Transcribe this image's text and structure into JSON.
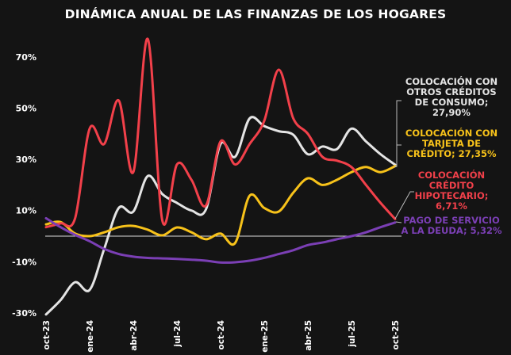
{
  "chart_data": {
    "type": "line",
    "title": "DINÁMICA ANUAL DE LAS FINANZAS DE LOS HOGARES",
    "xlabel": "",
    "ylabel": "",
    "x": [
      "oct-23",
      "nov-23",
      "dic-23",
      "ene-24",
      "feb-24",
      "mar-24",
      "abr-24",
      "may-24",
      "jun-24",
      "jul-24",
      "ago-24",
      "sep-24",
      "oct-24",
      "nov-24",
      "dic-24",
      "ene-25",
      "feb-25",
      "mar-25",
      "abr-25",
      "may-25",
      "jun-25",
      "jul-25",
      "ago-25",
      "sep-25",
      "oct-25"
    ],
    "x_tick_labels": [
      "oct-23",
      "ene-24",
      "abr-24",
      "jul-24",
      "oct-24",
      "ene-25",
      "abr-25",
      "jul-25",
      "oct-25"
    ],
    "y_tick_labels": [
      "70%",
      "50%",
      "30%",
      "10%",
      "-10%",
      "-30%"
    ],
    "y_ticks": [
      70,
      50,
      30,
      10,
      -10,
      -30
    ],
    "ylim": [
      -30,
      78
    ],
    "grid": false,
    "zero_line": true,
    "legend": "direct labels at right end",
    "series": [
      {
        "name": "COLOCACIÓN CON OTROS CRÉDITOS DE CONSUMO; 27,90%",
        "color": "#e4e4e4",
        "values": [
          -30.6,
          -25,
          -18,
          -21,
          -5,
          11,
          9.6,
          23.5,
          16.4,
          13,
          10,
          10.5,
          36,
          31,
          46,
          43,
          41,
          39.6,
          32,
          35,
          34,
          42,
          37,
          32,
          27.9
        ]
      },
      {
        "name": "COLOCACIÓN CON TARJETA DE CRÉDITO; 27,35%",
        "color": "#f7c21a",
        "values": [
          4.6,
          5.5,
          1,
          0,
          1.5,
          3.5,
          4,
          2.5,
          0.3,
          3.4,
          1.5,
          -1.2,
          1,
          -2.7,
          15.8,
          11,
          9.6,
          17,
          22.6,
          20,
          22,
          25,
          27,
          25,
          27.35
        ]
      },
      {
        "name": "COLOCACIÓN CRÉDITO HIPOTECARIO; 6,71%",
        "color": "#f2404a",
        "values": [
          3.5,
          5,
          7,
          42,
          36,
          53,
          25,
          77,
          6,
          28,
          22,
          12,
          37,
          28,
          36,
          45,
          65,
          46,
          40,
          31,
          29.5,
          27,
          20,
          13,
          6.71
        ]
      },
      {
        "name": "PAGO DE SERVICIO A LA DEUDA; 5,32%",
        "color": "#7b3fb5",
        "values": [
          7,
          3.5,
          0.5,
          -2,
          -5,
          -7,
          -8,
          -8.5,
          -8.7,
          -8.9,
          -9.2,
          -9.6,
          -10.3,
          -10.2,
          -9.6,
          -8.5,
          -7,
          -5.5,
          -3.5,
          -2.5,
          -1.2,
          0,
          1.5,
          3.5,
          5.32
        ]
      }
    ],
    "annotations": [
      {
        "lines": [
          "COLOCACIÓN CON",
          "OTROS CRÉDITOS",
          "DE CONSUMO;",
          "27,90%"
        ],
        "color": "#e4e4e4"
      },
      {
        "lines": [
          "COLOCACIÓN CON",
          "TARJETA DE",
          "CRÉDITO; 27,35%"
        ],
        "color": "#f7c21a"
      },
      {
        "lines": [
          "COLOCACIÓN",
          "CRÉDITO",
          "HIPOTECARIO;",
          "6,71%"
        ],
        "color": "#f2404a"
      },
      {
        "lines": [
          "PAGO DE SERVICIO",
          "A LA DEUDA; 5,32%"
        ],
        "color": "#7b3fb5"
      }
    ]
  }
}
